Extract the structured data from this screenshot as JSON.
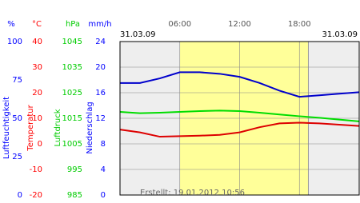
{
  "chart_data": {
    "type": "line",
    "xlim": [
      0,
      24
    ],
    "xticks": [
      {
        "value": 6,
        "label": "06:00"
      },
      {
        "value": 12,
        "label": "12:00"
      },
      {
        "value": 18,
        "label": "18:00"
      }
    ],
    "dates": [
      "31.03.09",
      "31.03.09"
    ],
    "created": "Erstellt: 19.01.2012 10:56",
    "daylight": [
      6,
      18.9
    ],
    "x": [
      0,
      2,
      4,
      6,
      8,
      10,
      12,
      14,
      16,
      18,
      20,
      22,
      24
    ],
    "axes": [
      {
        "unit": "%",
        "title": "Luftfeuchtigkeit",
        "color": "#0000ff",
        "ylim": [
          0,
          100
        ],
        "yticks": [
          0,
          25,
          50,
          75,
          100
        ]
      },
      {
        "unit": "°C",
        "title": "Temperatur",
        "color": "#ff0000",
        "ylim": [
          -20,
          40
        ],
        "yticks": [
          -20,
          -10,
          0,
          10,
          20,
          30,
          40
        ]
      },
      {
        "unit": "hPa",
        "title": "Luftdruck",
        "color": "#00cc00",
        "ylim": [
          985,
          1045
        ],
        "yticks": [
          985,
          995,
          1005,
          1015,
          1025,
          1035,
          1045
        ]
      },
      {
        "unit": "mm/h",
        "title": "Niederschlag",
        "color": "#0000ff",
        "ylim": [
          0,
          24
        ],
        "yticks": [
          0,
          4,
          8,
          12,
          16,
          20,
          24
        ]
      }
    ],
    "grid_axis": 3,
    "series": [
      {
        "axis": 0,
        "color": "#0000cc",
        "values": [
          73,
          73,
          76,
          80,
          80,
          79,
          77,
          73,
          68,
          64,
          65,
          66,
          67
        ]
      },
      {
        "axis": 1,
        "color": "#dd0000",
        "values": [
          5.6,
          4.5,
          2.8,
          3.0,
          3.2,
          3.5,
          4.5,
          6.5,
          8.0,
          8.3,
          8.0,
          7.5,
          7.0
        ]
      },
      {
        "axis": 2,
        "color": "#00dd00",
        "values": [
          1017.5,
          1017,
          1017.2,
          1017.5,
          1017.8,
          1018,
          1017.8,
          1017.2,
          1016.5,
          1015.8,
          1015.2,
          1014.5,
          1013.8
        ]
      }
    ]
  }
}
